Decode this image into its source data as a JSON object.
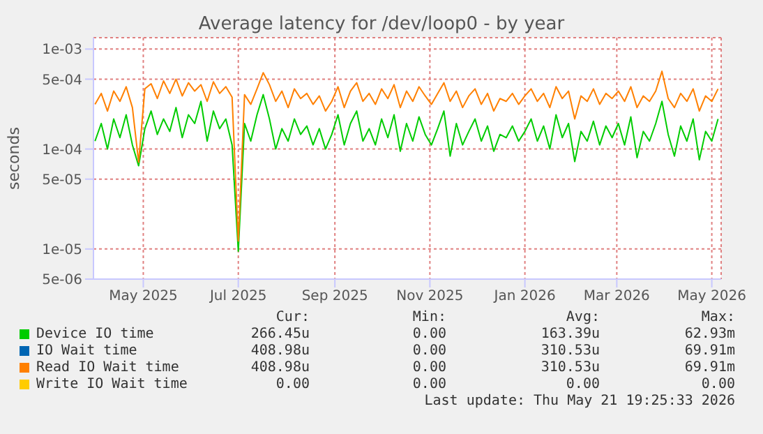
{
  "chart_data": {
    "type": "line",
    "title": "Average latency for /dev/loop0 - by year",
    "ylabel": "seconds",
    "log": true,
    "grid": true,
    "legend": "bottom",
    "xlim": [
      "2025-03-30",
      "2026-05-07"
    ],
    "xticks": [
      {
        "value": "2025-05-01",
        "label": "May 2025"
      },
      {
        "value": "2025-07-01",
        "label": "Jul 2025"
      },
      {
        "value": "2025-09-01",
        "label": "Sep 2025"
      },
      {
        "value": "2025-11-01",
        "label": "Nov 2025"
      },
      {
        "value": "2026-01-01",
        "label": "Jan 2026"
      },
      {
        "value": "2026-03-01",
        "label": "Mar 2026"
      },
      {
        "value": "2026-05-01",
        "label": "May 2026"
      }
    ],
    "ylim": [
      5e-06,
      0.0013
    ],
    "yticks": [
      {
        "value": 5e-06,
        "label": "5e-06"
      },
      {
        "value": 1e-05,
        "label": "1e-05"
      },
      {
        "value": 5e-05,
        "label": "5e-05"
      },
      {
        "value": 0.0001,
        "label": "1e-04"
      },
      {
        "value": 0.0005,
        "label": "5e-04"
      },
      {
        "value": 0.001,
        "label": "1e-03"
      }
    ],
    "x": [
      "2025-03-31",
      "2025-04-04",
      "2025-04-08",
      "2025-04-12",
      "2025-04-16",
      "2025-04-20",
      "2025-04-24",
      "2025-04-28",
      "2025-05-02",
      "2025-05-06",
      "2025-05-10",
      "2025-05-14",
      "2025-05-18",
      "2025-05-22",
      "2025-05-26",
      "2025-05-30",
      "2025-06-03",
      "2025-06-07",
      "2025-06-11",
      "2025-06-15",
      "2025-06-19",
      "2025-06-23",
      "2025-06-27",
      "2025-07-01",
      "2025-07-05",
      "2025-07-09",
      "2025-07-13",
      "2025-07-17",
      "2025-07-21",
      "2025-07-25",
      "2025-07-29",
      "2025-08-02",
      "2025-08-06",
      "2025-08-10",
      "2025-08-14",
      "2025-08-18",
      "2025-08-22",
      "2025-08-26",
      "2025-08-30",
      "2025-09-03",
      "2025-09-07",
      "2025-09-11",
      "2025-09-15",
      "2025-09-19",
      "2025-09-23",
      "2025-09-27",
      "2025-10-01",
      "2025-10-05",
      "2025-10-09",
      "2025-10-13",
      "2025-10-17",
      "2025-10-21",
      "2025-10-25",
      "2025-10-29",
      "2025-11-02",
      "2025-11-06",
      "2025-11-10",
      "2025-11-14",
      "2025-11-18",
      "2025-11-22",
      "2025-11-26",
      "2025-11-30",
      "2025-12-04",
      "2025-12-08",
      "2025-12-12",
      "2025-12-16",
      "2025-12-20",
      "2025-12-24",
      "2025-12-28",
      "2026-01-01",
      "2026-01-05",
      "2026-01-09",
      "2026-01-13",
      "2026-01-17",
      "2026-01-21",
      "2026-01-25",
      "2026-01-29",
      "2026-02-02",
      "2026-02-06",
      "2026-02-10",
      "2026-02-14",
      "2026-02-18",
      "2026-02-22",
      "2026-02-26",
      "2026-03-02",
      "2026-03-06",
      "2026-03-10",
      "2026-03-14",
      "2026-03-18",
      "2026-03-22",
      "2026-03-26",
      "2026-03-30",
      "2026-04-03",
      "2026-04-07",
      "2026-04-11",
      "2026-04-15",
      "2026-04-19",
      "2026-04-23",
      "2026-04-27",
      "2026-05-01",
      "2026-05-05"
    ],
    "series": [
      {
        "name": "Device IO time",
        "color": "#00cc00",
        "values": [
          0.00012,
          0.00018,
          0.0001,
          0.0002,
          0.00013,
          0.00022,
          0.00011,
          6.8e-05,
          0.00016,
          0.00024,
          0.00014,
          0.0002,
          0.00015,
          0.00026,
          0.00013,
          0.00022,
          0.00018,
          0.0003,
          0.00012,
          0.00024,
          0.00016,
          0.0002,
          0.00011,
          9.5e-06,
          0.00018,
          0.00012,
          0.00022,
          0.00035,
          0.0002,
          0.0001,
          0.00016,
          0.00012,
          0.0002,
          0.00014,
          0.00017,
          0.00011,
          0.00016,
          0.0001,
          0.00014,
          0.00022,
          0.00011,
          0.00018,
          0.00024,
          0.00012,
          0.00016,
          0.00011,
          0.0002,
          0.00013,
          0.00022,
          9.5e-05,
          0.00018,
          0.00012,
          0.00021,
          0.00014,
          0.00011,
          0.00016,
          0.00024,
          8.5e-05,
          0.00018,
          0.00011,
          0.00015,
          0.0002,
          0.00012,
          0.00017,
          9.5e-05,
          0.00014,
          0.00013,
          0.00017,
          0.00012,
          0.00015,
          0.0002,
          0.00012,
          0.00017,
          0.0001,
          0.00022,
          0.00013,
          0.00018,
          7.5e-05,
          0.00015,
          0.00012,
          0.00019,
          0.00011,
          0.00017,
          0.00013,
          0.00018,
          0.00011,
          0.00021,
          8.2e-05,
          0.00015,
          0.00012,
          0.00018,
          0.0003,
          0.00014,
          8.5e-05,
          0.00017,
          0.00012,
          0.0002,
          7.8e-05,
          0.00015,
          0.00012,
          0.0002
        ]
      },
      {
        "name": "IO Wait time",
        "color": "#0066b3",
        "values": [
          null,
          null,
          null,
          null,
          null,
          null,
          null,
          null,
          null,
          null,
          null,
          null,
          null,
          null,
          null,
          null,
          null,
          null,
          null,
          null,
          null,
          null,
          null,
          null,
          null,
          null,
          null,
          null,
          null,
          null,
          null,
          null,
          null,
          null,
          null,
          null,
          null,
          null,
          null,
          null,
          null,
          null,
          null,
          null,
          null,
          null,
          null,
          null,
          null,
          null,
          null,
          null,
          null,
          null,
          null,
          null,
          null,
          null,
          null,
          null,
          null,
          null,
          null,
          null,
          null,
          null,
          null,
          null,
          null,
          null,
          null,
          null,
          null,
          null,
          null,
          null,
          null,
          null,
          null,
          null,
          null,
          null,
          null,
          null,
          null,
          null,
          null,
          null,
          null,
          null,
          null,
          null,
          null,
          null,
          null,
          null,
          null,
          null,
          null,
          null,
          null
        ]
      },
      {
        "name": "Read IO Wait time",
        "color": "#ff8000",
        "values": [
          0.00028,
          0.00036,
          0.00024,
          0.00038,
          0.0003,
          0.00042,
          0.00026,
          7.4e-05,
          0.0004,
          0.00045,
          0.00032,
          0.00048,
          0.00036,
          0.0005,
          0.00034,
          0.00046,
          0.00038,
          0.00044,
          0.0003,
          0.00047,
          0.00036,
          0.00042,
          0.00033,
          1.2e-05,
          0.00035,
          0.00028,
          0.0004,
          0.00058,
          0.00044,
          0.0003,
          0.00038,
          0.00026,
          0.0004,
          0.00032,
          0.00036,
          0.00028,
          0.00034,
          0.00024,
          0.0003,
          0.00042,
          0.00026,
          0.00038,
          0.00046,
          0.0003,
          0.00036,
          0.00028,
          0.0004,
          0.00032,
          0.00044,
          0.00026,
          0.00038,
          0.0003,
          0.00042,
          0.00034,
          0.00028,
          0.00036,
          0.00046,
          0.0003,
          0.00038,
          0.00026,
          0.00034,
          0.0004,
          0.00028,
          0.00036,
          0.00024,
          0.00032,
          0.0003,
          0.00036,
          0.00028,
          0.00034,
          0.0004,
          0.0003,
          0.00036,
          0.00026,
          0.00042,
          0.00032,
          0.00038,
          0.0002,
          0.00034,
          0.0003,
          0.0004,
          0.00028,
          0.00036,
          0.00032,
          0.00038,
          0.0003,
          0.00042,
          0.00026,
          0.00034,
          0.0003,
          0.00038,
          0.0006,
          0.00032,
          0.00026,
          0.00036,
          0.0003,
          0.0004,
          0.00024,
          0.00034,
          0.0003,
          0.0004
        ]
      },
      {
        "name": "Write IO Wait time",
        "color": "#ffcc00",
        "values": [
          null,
          null,
          null,
          null,
          null,
          null,
          null,
          null,
          null,
          null,
          null,
          null,
          null,
          null,
          null,
          null,
          null,
          null,
          null,
          null,
          null,
          null,
          null,
          null,
          null,
          null,
          null,
          null,
          null,
          null,
          null,
          null,
          null,
          null,
          null,
          null,
          null,
          null,
          null,
          null,
          null,
          null,
          null,
          null,
          null,
          null,
          null,
          null,
          null,
          null,
          null,
          null,
          null,
          null,
          null,
          null,
          null,
          null,
          null,
          null,
          null,
          null,
          null,
          null,
          null,
          null,
          null,
          null,
          null,
          null,
          null,
          null,
          null,
          null,
          null,
          null,
          null,
          null,
          null,
          null,
          null,
          null,
          null,
          null,
          null,
          null,
          null,
          null,
          null,
          null,
          null,
          null,
          null,
          null,
          null,
          null,
          null,
          null,
          null,
          null,
          null
        ]
      }
    ],
    "annotations": [
      "Cur:",
      "Min:",
      "Avg:",
      "Max:",
      "266.45u",
      "0.00",
      "163.39u",
      "62.93m",
      "408.98u",
      "0.00",
      "310.53u",
      "69.91m",
      "408.98u",
      "0.00",
      "310.53u",
      "69.91m",
      "0.00",
      "0.00",
      "0.00",
      "0.00",
      "Last update: Thu May 21 19:25:33 2026"
    ]
  }
}
